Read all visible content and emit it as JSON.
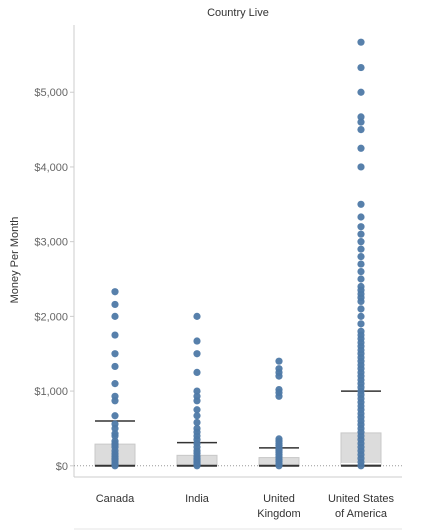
{
  "chart_data": {
    "type": "box",
    "header": "Country Live",
    "ylabel": "Money Per Month",
    "ylim": [
      -150,
      5900
    ],
    "yticks": [
      {
        "value": 0,
        "label": "$0"
      },
      {
        "value": 1000,
        "label": "$1,000"
      },
      {
        "value": 2000,
        "label": "$2,000"
      },
      {
        "value": 3000,
        "label": "$3,000"
      },
      {
        "value": 4000,
        "label": "$4,000"
      },
      {
        "value": 5000,
        "label": "$5,000"
      }
    ],
    "categories": [
      {
        "name": "Canada",
        "label_lines": [
          "Canada"
        ]
      },
      {
        "name": "India",
        "label_lines": [
          "India"
        ]
      },
      {
        "name": "United Kingdom",
        "label_lines": [
          "United",
          "Kingdom"
        ]
      },
      {
        "name": "United States of America",
        "label_lines": [
          "United States",
          "of America"
        ]
      }
    ],
    "boxes": [
      {
        "category": "Canada",
        "whisker_low": 0,
        "q1": 0,
        "median": 0,
        "q3": 290,
        "whisker_high": 600
      },
      {
        "category": "India",
        "whisker_low": 0,
        "q1": 0,
        "median": 0,
        "q3": 140,
        "whisker_high": 310
      },
      {
        "category": "United Kingdom",
        "whisker_low": 0,
        "q1": 0,
        "median": 0,
        "q3": 110,
        "whisker_high": 240
      },
      {
        "category": "United States of America",
        "whisker_low": 0,
        "q1": 0,
        "median": 30,
        "q3": 440,
        "whisker_high": 1000
      }
    ],
    "points": [
      {
        "category": "Canada",
        "values": [
          2330,
          2160,
          2000,
          1750,
          1500,
          1330,
          1100,
          930,
          870,
          670,
          560,
          500,
          430,
          400,
          330,
          300,
          280,
          250,
          200,
          160,
          130,
          100,
          80,
          50,
          20,
          0
        ]
      },
      {
        "category": "India",
        "values": [
          2000,
          1670,
          1500,
          1250,
          1000,
          930,
          870,
          750,
          670,
          580,
          500,
          450,
          400,
          350,
          300,
          250,
          200,
          170,
          130,
          100,
          80,
          60,
          40,
          20,
          0
        ]
      },
      {
        "category": "United Kingdom",
        "values": [
          1400,
          1300,
          1250,
          1200,
          1020,
          980,
          930,
          360,
          330,
          300,
          270,
          240,
          220,
          200,
          180,
          150,
          120,
          90,
          60,
          30,
          0
        ]
      },
      {
        "category": "United States of America",
        "values": [
          5670,
          5330,
          5000,
          4670,
          4600,
          4500,
          4250,
          4000,
          3500,
          3330,
          3200,
          3100,
          3000,
          2900,
          2800,
          2700,
          2600,
          2500,
          2400,
          2350,
          2300,
          2250,
          2200,
          2100,
          2000,
          1900,
          1800,
          1750,
          1700,
          1650,
          1600,
          1550,
          1500,
          1450,
          1400,
          1350,
          1300,
          1250,
          1200,
          1150,
          1100,
          1050,
          1000,
          950,
          900,
          850,
          800,
          750,
          700,
          650,
          600,
          550,
          500,
          450,
          400,
          350,
          300,
          250,
          200,
          150,
          100,
          50,
          0
        ]
      }
    ],
    "colors": {
      "points": "#4e79a7",
      "box_fill": "#dcdcdc",
      "box_stroke": "#c8c8c8",
      "whisker": "#333333",
      "baseline": "#999999",
      "axis": "#cccccc"
    },
    "grid": false,
    "legend": "none"
  }
}
